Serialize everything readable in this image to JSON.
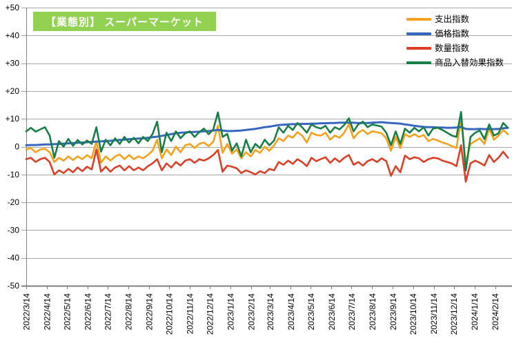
{
  "title": {
    "text": "【業態別】 スーパーマーケット"
  },
  "colors": {
    "title_bg": "#93D153",
    "title_text": "#FFFFFF",
    "grid": "#A6A6A6",
    "axis": "#7F7F7F",
    "tick_text": "#000000",
    "background": "#FFFFFF"
  },
  "chart_data": {
    "type": "line",
    "title": "【業態別】 スーパーマーケット",
    "xlabel": "",
    "ylabel": "",
    "ylim": [
      -50,
      50
    ],
    "grid": "horizontal",
    "legend_position": "top-right",
    "y_tick_labels": [
      "+50",
      "+40",
      "+30",
      "+20",
      "+10",
      "0",
      "-10",
      "-20",
      "-30",
      "-40",
      "-50"
    ],
    "x_start_date": "2022/3/14",
    "x_interval_days": 7,
    "x_tick_labels": [
      "2022/3/14",
      "2022/4/14",
      "2022/5/14",
      "2022/6/14",
      "2022/7/14",
      "2022/8/14",
      "2022/9/14",
      "2022/10/14",
      "2022/11/14",
      "2022/12/14",
      "2023/1/14",
      "2023/2/14",
      "2023/3/14",
      "2023/4/14",
      "2023/5/14",
      "2023/6/14",
      "2023/7/14",
      "2023/8/14",
      "2023/9/14",
      "2023/10/14",
      "2023/11/14",
      "2023/12/14",
      "2024/1/14",
      "2024/2/14"
    ],
    "series": [
      {
        "name": "支出指数",
        "color": "#F6A11D",
        "values": [
          -1.0,
          -0.5,
          -2.0,
          -1.0,
          -0.8,
          -2.0,
          -5.5,
          -4.0,
          -5.0,
          -3.5,
          -4.8,
          -3.5,
          -4.5,
          -3.0,
          -4.2,
          2.0,
          -5.8,
          -3.5,
          -5.0,
          -3.5,
          -2.8,
          -4.5,
          -3.0,
          -4.5,
          -3.5,
          -4.2,
          -3.0,
          -1.5,
          2.5,
          -4.2,
          -1.0,
          -3.0,
          0.0,
          -2.0,
          0.5,
          1.0,
          -0.5,
          1.0,
          1.5,
          0.2,
          1.8,
          7.6,
          -2.2,
          1.0,
          -2.5,
          -1.0,
          -4.2,
          -2.0,
          -3.5,
          -1.2,
          -2.2,
          0.0,
          -1.5,
          0.5,
          3.0,
          2.0,
          4.0,
          3.2,
          5.2,
          4.0,
          1.5,
          5.0,
          4.2,
          4.0,
          5.0,
          2.5,
          4.0,
          3.2,
          5.0,
          8.0,
          3.0,
          5.0,
          6.0,
          4.5,
          5.5,
          5.2,
          4.8,
          3.0,
          -1.5,
          3.5,
          -0.5,
          4.5,
          3.5,
          4.5,
          3.5,
          4.2,
          2.0,
          2.8,
          2.2,
          1.5,
          1.0,
          0.2,
          -0.5,
          10.0,
          -6.0,
          1.0,
          2.0,
          3.0,
          1.0,
          6.5,
          2.5,
          4.0,
          6.0,
          4.5
        ]
      },
      {
        "name": "価格指数",
        "color": "#3567C1",
        "values": [
          0.5,
          0.6,
          0.6,
          0.7,
          0.8,
          0.8,
          0.9,
          1.0,
          1.1,
          1.2,
          1.3,
          1.4,
          1.5,
          1.6,
          1.7,
          1.8,
          1.9,
          2.0,
          2.1,
          2.3,
          2.4,
          2.5,
          2.7,
          2.8,
          2.9,
          3.0,
          3.2,
          3.4,
          3.6,
          3.9,
          4.2,
          4.5,
          4.8,
          5.0,
          5.1,
          5.2,
          5.3,
          5.4,
          5.5,
          5.6,
          5.8,
          6.0,
          5.8,
          5.6,
          5.6,
          5.7,
          5.8,
          6.0,
          6.2,
          6.4,
          6.7,
          7.0,
          7.2,
          7.5,
          7.8,
          7.9,
          8.0,
          8.1,
          8.1,
          8.2,
          8.2,
          8.3,
          8.3,
          8.4,
          8.4,
          8.5,
          8.5,
          8.6,
          8.6,
          8.6,
          8.6,
          8.5,
          8.5,
          8.5,
          8.6,
          8.7,
          8.8,
          8.6,
          8.5,
          8.4,
          8.3,
          8.0,
          7.8,
          7.5,
          7.3,
          7.1,
          7.0,
          7.0,
          6.9,
          6.9,
          6.8,
          6.8,
          6.9,
          7.1,
          6.4,
          6.3,
          6.3,
          6.4,
          6.3,
          6.4,
          6.3,
          6.4,
          6.6,
          6.8
        ]
      },
      {
        "name": "数量指数",
        "color": "#DD3E26",
        "values": [
          -4.5,
          -4.0,
          -5.5,
          -4.5,
          -4.0,
          -5.5,
          -10.0,
          -8.5,
          -9.5,
          -8.0,
          -9.2,
          -7.5,
          -8.8,
          -7.2,
          -8.2,
          -1.0,
          -9.0,
          -7.2,
          -9.0,
          -7.5,
          -6.8,
          -8.5,
          -7.0,
          -8.5,
          -7.5,
          -8.5,
          -7.0,
          -6.0,
          -4.5,
          -8.5,
          -6.0,
          -7.5,
          -5.5,
          -6.8,
          -5.0,
          -4.5,
          -5.8,
          -4.5,
          -5.0,
          -4.2,
          -3.0,
          -1.2,
          -9.0,
          -6.8,
          -7.2,
          -7.8,
          -9.5,
          -8.5,
          -9.2,
          -10.0,
          -8.8,
          -9.5,
          -8.0,
          -8.5,
          -5.5,
          -6.5,
          -5.0,
          -6.2,
          -4.5,
          -5.5,
          -7.0,
          -4.0,
          -5.2,
          -4.5,
          -3.8,
          -5.8,
          -4.2,
          -5.5,
          -4.0,
          -3.0,
          -6.5,
          -5.5,
          -6.8,
          -5.2,
          -4.5,
          -5.5,
          -4.2,
          -5.2,
          -10.5,
          -7.0,
          -9.2,
          -3.2,
          -4.5,
          -3.8,
          -4.2,
          -5.5,
          -4.5,
          -4.0,
          -4.2,
          -5.0,
          -5.5,
          -6.0,
          -7.0,
          0.5,
          -12.6,
          -6.0,
          -5.0,
          -5.8,
          -6.8,
          -3.0,
          -5.5,
          -4.0,
          -1.8,
          -4.0
        ]
      },
      {
        "name": "商品入替効果指数",
        "color": "#177E46",
        "values": [
          5.5,
          6.8,
          5.4,
          6.2,
          7.0,
          4.0,
          -4.0,
          2.0,
          0.0,
          2.8,
          0.3,
          2.4,
          0.8,
          2.2,
          1.0,
          7.0,
          -1.8,
          2.5,
          0.5,
          3.0,
          1.0,
          3.5,
          1.5,
          3.2,
          1.2,
          3.5,
          2.0,
          4.5,
          9.0,
          -2.0,
          5.0,
          2.0,
          5.5,
          3.0,
          4.8,
          5.5,
          3.5,
          5.2,
          6.5,
          4.5,
          6.2,
          12.3,
          3.5,
          4.6,
          -1.5,
          1.2,
          -3.5,
          2.5,
          -2.0,
          1.0,
          -0.5,
          2.5,
          0.5,
          2.2,
          7.0,
          5.0,
          7.5,
          6.0,
          8.5,
          7.0,
          5.0,
          8.0,
          7.0,
          6.5,
          7.5,
          5.0,
          7.0,
          6.2,
          7.8,
          10.2,
          5.5,
          8.0,
          9.0,
          7.0,
          8.0,
          7.6,
          7.2,
          5.0,
          0.5,
          5.5,
          1.0,
          6.5,
          5.0,
          6.8,
          5.5,
          7.0,
          4.0,
          6.5,
          6.8,
          6.0,
          5.0,
          4.0,
          3.5,
          12.5,
          -8.6,
          3.5,
          5.0,
          5.8,
          2.7,
          8.0,
          4.0,
          4.8,
          8.5,
          6.8
        ]
      }
    ]
  }
}
